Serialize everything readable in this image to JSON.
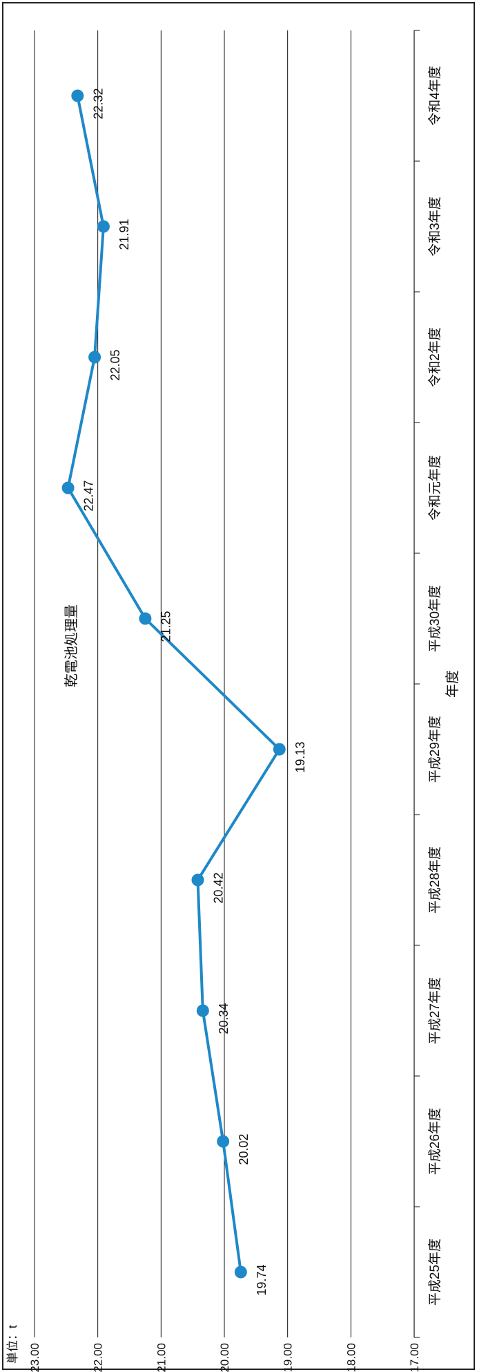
{
  "chart_data": {
    "type": "line",
    "title": "乾電池処理量",
    "unit_label": "単位：t",
    "xlabel": "年度",
    "ylabel": "",
    "categories": [
      "平成25年度",
      "平成26年度",
      "平成27年度",
      "平成28年度",
      "平成29年度",
      "平成30年度",
      "令和元年度",
      "令和2年度",
      "令和3年度",
      "令和4年度"
    ],
    "series": [
      {
        "values": [
          19.74,
          20.02,
          20.34,
          20.42,
          19.13,
          21.25,
          22.47,
          22.05,
          21.91,
          22.32
        ]
      }
    ],
    "data_labels": [
      "19.74",
      "20.02",
      "20.34",
      "20.42",
      "19.13",
      "21.25",
      "22.47",
      "22.05",
      "21.91",
      "22.32"
    ],
    "ylim": [
      17.0,
      23.0
    ],
    "yticks": [
      "17.00",
      "18.00",
      "19.00",
      "20.00",
      "21.00",
      "22.00",
      "23.00"
    ],
    "grid": true,
    "legend": "none",
    "orientation": "rotated-90-ccw",
    "line_color": "#1e88c8",
    "marker_color": "#1e88c8"
  }
}
